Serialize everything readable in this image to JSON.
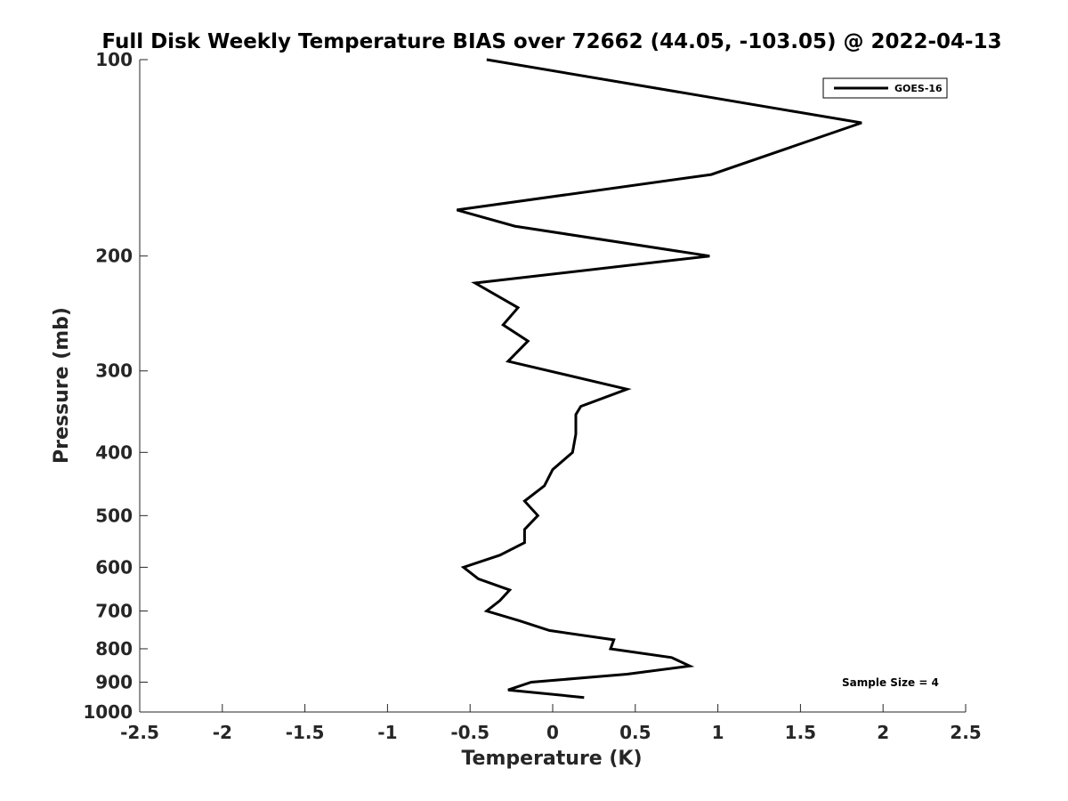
{
  "chart_data": {
    "type": "line",
    "title": "Full Disk Weekly Temperature BIAS over 72662 (44.05, -103.05) @ 2022-04-13",
    "xlabel": "Temperature (K)",
    "ylabel": "Pressure (mb)",
    "xlim": [
      -2.5,
      2.5
    ],
    "ylim": [
      100,
      1000
    ],
    "y_scale": "log",
    "y_reversed": true,
    "grid": false,
    "legend_position": "top-right",
    "x_ticks": [
      "-2.5",
      "-2",
      "-1.5",
      "-1",
      "-0.5",
      "0",
      "0.5",
      "1",
      "1.5",
      "2",
      "2.5"
    ],
    "x_tick_values": [
      -2.5,
      -2,
      -1.5,
      -1,
      -0.5,
      0,
      0.5,
      1,
      1.5,
      2,
      2.5
    ],
    "y_ticks": [
      "100",
      "200",
      "300",
      "400",
      "500",
      "600",
      "700",
      "800",
      "900",
      "1000"
    ],
    "y_tick_values": [
      100,
      200,
      300,
      400,
      500,
      600,
      700,
      800,
      900,
      1000
    ],
    "series": [
      {
        "name": "GOES-16",
        "color": "#000000",
        "points": [
          {
            "p": 100,
            "t": -0.4
          },
          {
            "p": 125,
            "t": 1.87
          },
          {
            "p": 150,
            "t": 0.96
          },
          {
            "p": 170,
            "t": -0.58
          },
          {
            "p": 180,
            "t": -0.23
          },
          {
            "p": 200,
            "t": 0.95
          },
          {
            "p": 220,
            "t": -0.47
          },
          {
            "p": 240,
            "t": -0.21
          },
          {
            "p": 255,
            "t": -0.3
          },
          {
            "p": 270,
            "t": -0.15
          },
          {
            "p": 290,
            "t": -0.27
          },
          {
            "p": 320,
            "t": 0.45
          },
          {
            "p": 340,
            "t": 0.17
          },
          {
            "p": 350,
            "t": 0.14
          },
          {
            "p": 375,
            "t": 0.14
          },
          {
            "p": 400,
            "t": 0.12
          },
          {
            "p": 425,
            "t": 0.0
          },
          {
            "p": 450,
            "t": -0.05
          },
          {
            "p": 475,
            "t": -0.17
          },
          {
            "p": 500,
            "t": -0.09
          },
          {
            "p": 525,
            "t": -0.17
          },
          {
            "p": 550,
            "t": -0.17
          },
          {
            "p": 575,
            "t": -0.32
          },
          {
            "p": 600,
            "t": -0.54
          },
          {
            "p": 625,
            "t": -0.45
          },
          {
            "p": 650,
            "t": -0.26
          },
          {
            "p": 675,
            "t": -0.32
          },
          {
            "p": 700,
            "t": -0.4
          },
          {
            "p": 725,
            "t": -0.2
          },
          {
            "p": 750,
            "t": -0.02
          },
          {
            "p": 775,
            "t": 0.37
          },
          {
            "p": 800,
            "t": 0.35
          },
          {
            "p": 825,
            "t": 0.72
          },
          {
            "p": 850,
            "t": 0.83
          },
          {
            "p": 875,
            "t": 0.45
          },
          {
            "p": 900,
            "t": -0.13
          },
          {
            "p": 925,
            "t": -0.27
          },
          {
            "p": 950,
            "t": 0.19
          }
        ]
      }
    ],
    "annotation": "Sample Size = 4"
  }
}
